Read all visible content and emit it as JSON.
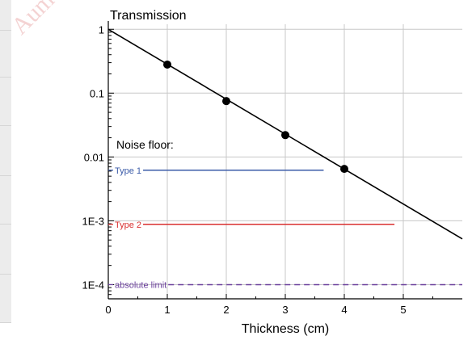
{
  "chart_data": {
    "type": "line",
    "title": "Transmission",
    "xlabel": "Thickness (cm)",
    "ylabel": "",
    "xlim": [
      0,
      6
    ],
    "ylim": [
      6e-05,
      1.2
    ],
    "y_scale": "log",
    "grid": true,
    "x_ticks": [
      "0",
      "1",
      "2",
      "3",
      "4",
      "5"
    ],
    "x_tick_values": [
      0,
      1,
      2,
      3,
      4,
      5
    ],
    "y_ticks": [
      "1",
      "0.1",
      "0.01",
      "1E-3",
      "1E-4"
    ],
    "y_tick_values": [
      1,
      0.1,
      0.01,
      0.001,
      0.0001
    ],
    "series": [
      {
        "color": "#000000",
        "line": {
          "x": [
            0,
            6
          ],
          "y": [
            1.0,
            0.00052
          ]
        },
        "points": {
          "x": [
            1,
            2,
            3,
            4
          ],
          "y": [
            0.28,
            0.075,
            0.022,
            0.0065
          ]
        }
      }
    ],
    "noise_floor_title": "Noise floor:",
    "noise_floors": [
      {
        "label": "Type 1",
        "y": 0.0062,
        "x_end": 3.65,
        "color": "#3b5ba8",
        "dashed": false
      },
      {
        "label": "Type 2",
        "y": 0.00088,
        "x_end": 4.85,
        "color": "#d93030",
        "dashed": false
      },
      {
        "label": "absolute limit",
        "y": 0.0001,
        "x_end": 6.0,
        "color": "#6a3f9c",
        "dashed": true
      }
    ]
  },
  "watermark": "Aum"
}
